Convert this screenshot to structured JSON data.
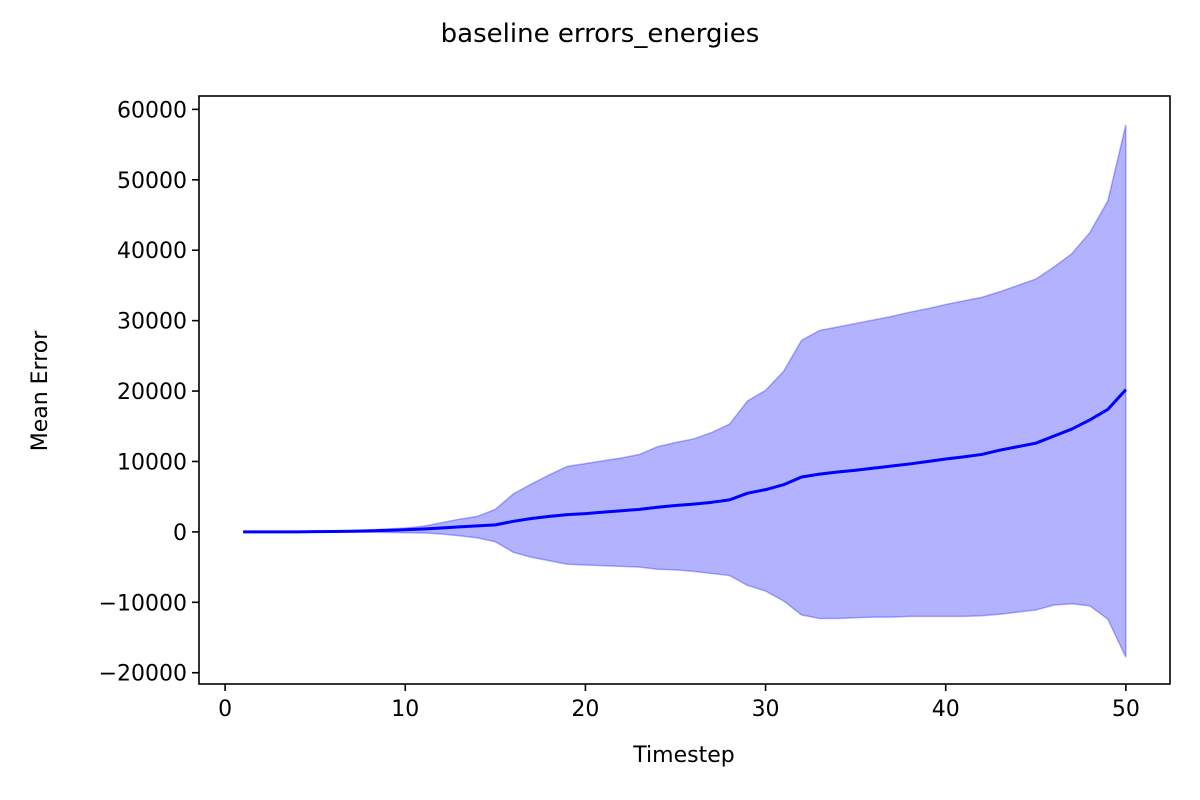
{
  "chart_data": {
    "type": "line",
    "title": "baseline errors_energies",
    "xlabel": "Timestep",
    "ylabel": "Mean Error",
    "xlim": [
      -1.45,
      52.45
    ],
    "ylim": [
      -21600,
      61900
    ],
    "xticks": [
      0,
      10,
      20,
      30,
      40,
      50
    ],
    "yticks": [
      -20000,
      -10000,
      0,
      10000,
      20000,
      30000,
      40000,
      50000,
      60000
    ],
    "xtick_labels": [
      "0",
      "10",
      "20",
      "30",
      "40",
      "50"
    ],
    "ytick_labels": [
      "−20000",
      "−10000",
      "0",
      "10000",
      "20000",
      "30000",
      "40000",
      "50000",
      "60000"
    ],
    "grid": false,
    "colors": {
      "line": "#0000ff",
      "band": "#0000ff"
    },
    "x": [
      1,
      2,
      3,
      4,
      5,
      6,
      7,
      8,
      9,
      10,
      11,
      12,
      13,
      14,
      15,
      16,
      17,
      18,
      19,
      20,
      21,
      22,
      23,
      24,
      25,
      26,
      27,
      28,
      29,
      30,
      31,
      32,
      33,
      34,
      35,
      36,
      37,
      38,
      39,
      40,
      41,
      42,
      43,
      44,
      45,
      46,
      47,
      48,
      49,
      50
    ],
    "series": [
      {
        "values": [
          0,
          0,
          0,
          0,
          30,
          60,
          100,
          150,
          220,
          300,
          420,
          560,
          720,
          850,
          1000,
          1500,
          1900,
          2200,
          2450,
          2600,
          2800,
          3000,
          3200,
          3500,
          3750,
          3950,
          4200,
          4550,
          5500,
          6000,
          6700,
          7800,
          8200,
          8500,
          8750,
          9050,
          9350,
          9650,
          10000,
          10350,
          10650,
          11000,
          11600,
          12100,
          12600,
          13600,
          14600,
          15900,
          17400,
          20200
        ],
        "band_upper": [
          0,
          0,
          0,
          0,
          60,
          110,
          180,
          280,
          420,
          550,
          800,
          1300,
          1800,
          2200,
          3200,
          5400,
          6800,
          8100,
          9300,
          9700,
          10100,
          10500,
          11000,
          12100,
          12700,
          13200,
          14100,
          15300,
          18600,
          20100,
          22800,
          27200,
          28600,
          29100,
          29600,
          30100,
          30600,
          31200,
          31700,
          32300,
          32800,
          33300,
          34100,
          35000,
          35900,
          37600,
          39500,
          42500,
          47000,
          57800
        ],
        "band_lower": [
          0,
          0,
          0,
          0,
          -10,
          -20,
          -30,
          -50,
          -80,
          -120,
          -160,
          -300,
          -550,
          -850,
          -1400,
          -2900,
          -3600,
          -4100,
          -4600,
          -4700,
          -4800,
          -4900,
          -5000,
          -5300,
          -5400,
          -5600,
          -5900,
          -6200,
          -7600,
          -8400,
          -9800,
          -11800,
          -12300,
          -12300,
          -12200,
          -12100,
          -12100,
          -12000,
          -12000,
          -12000,
          -12000,
          -11900,
          -11700,
          -11400,
          -11100,
          -10400,
          -10200,
          -10500,
          -12400,
          -17800
        ]
      }
    ]
  }
}
